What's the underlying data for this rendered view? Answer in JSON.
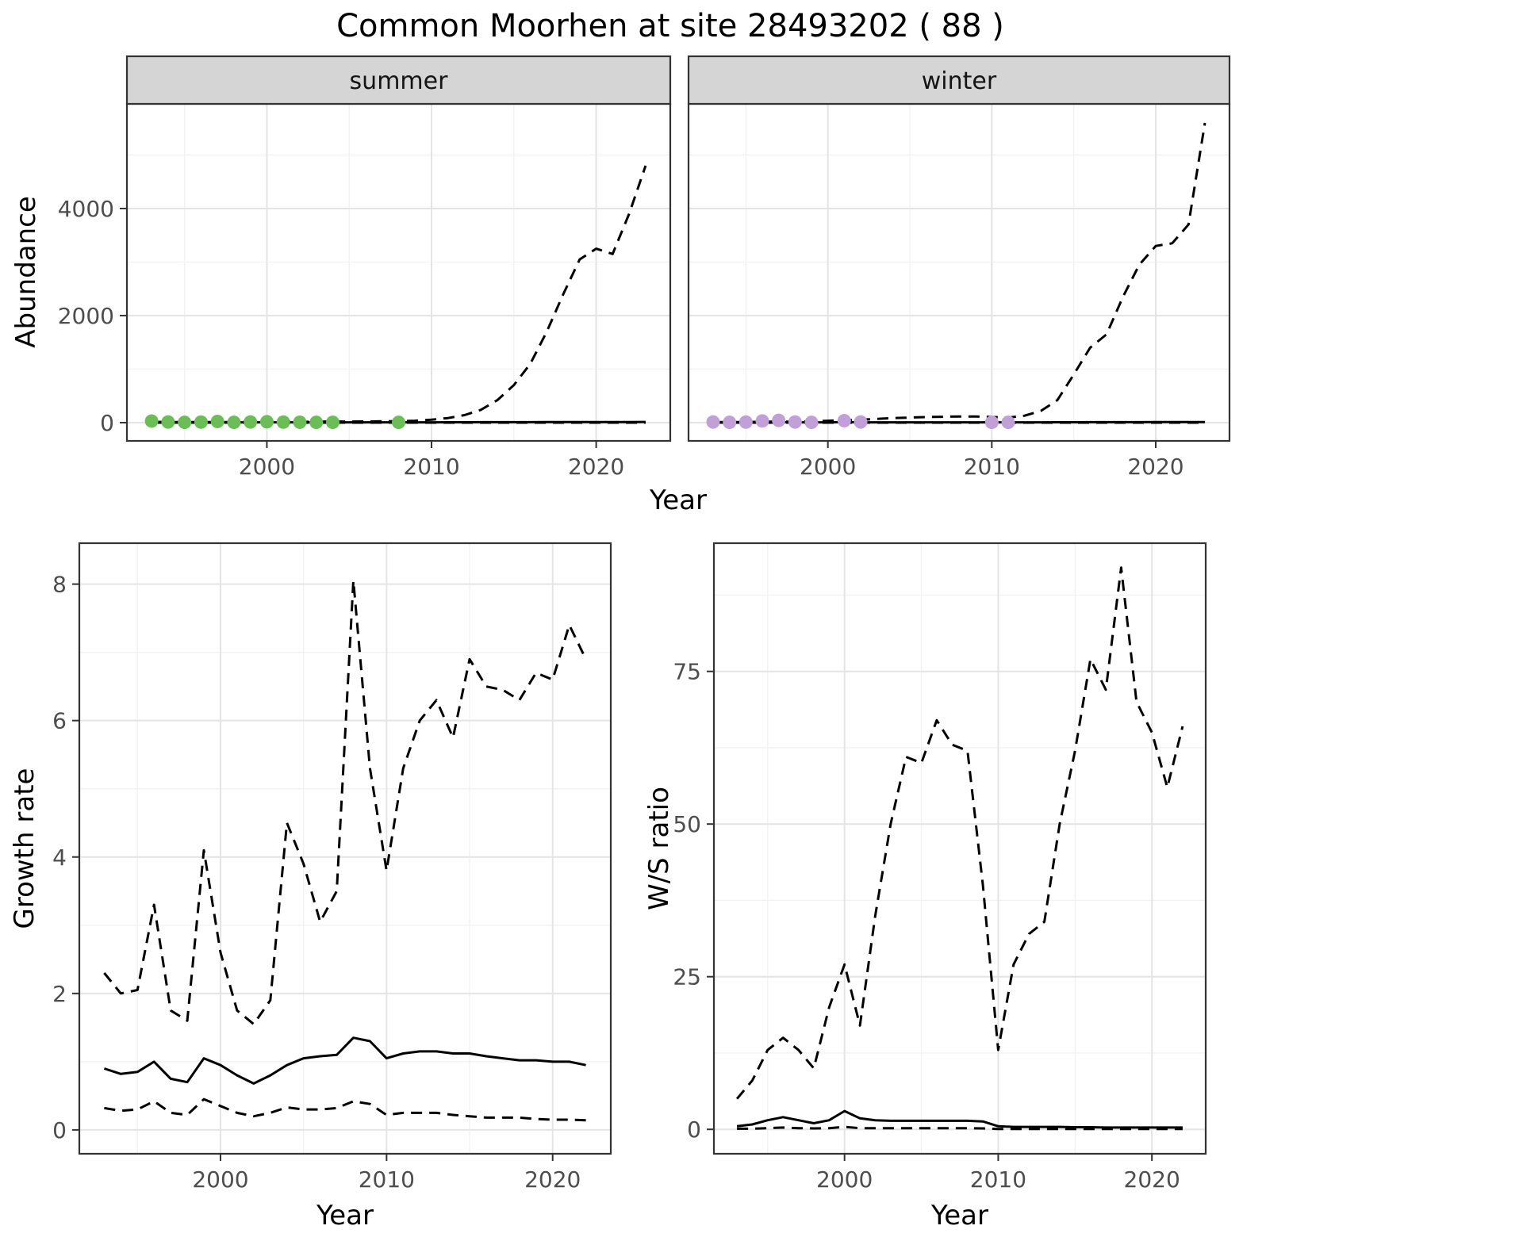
{
  "title": "Common Moorhen at site 28493202 ( 88 )",
  "colors": {
    "line": "#000000",
    "panel_bg": "#ffffff",
    "strip_bg": "#d5d5d5",
    "panel_border": "#333333",
    "grid_major": "#e4e4e4",
    "grid_minor": "#f2f2f2",
    "tick": "#333333",
    "tick_label": "#4d4d4d",
    "summer_points": "#6abf54",
    "winter_points": "#c19fd8"
  },
  "chart_data": [
    {
      "id": "abundance-summer",
      "type": "line",
      "facet_label": "summer",
      "xlabel": "Year",
      "ylabel": "Abundance",
      "xlim": [
        1991.5,
        2024.5
      ],
      "ylim": [
        -341,
        5955
      ],
      "xticks": [
        2000,
        2010,
        2020
      ],
      "yticks": [
        0,
        2000,
        4000
      ],
      "grid": true,
      "series": [
        {
          "name": "upper_ci",
          "style": "dashed",
          "x": [
            1993,
            1994,
            1995,
            1996,
            1997,
            1998,
            1999,
            2000,
            2001,
            2002,
            2003,
            2004,
            2005,
            2006,
            2007,
            2008,
            2009,
            2010,
            2011,
            2012,
            2013,
            2014,
            2015,
            2016,
            2017,
            2018,
            2019,
            2020,
            2021,
            2022,
            2023
          ],
          "y": [
            15,
            12,
            10,
            12,
            10,
            10,
            12,
            15,
            15,
            15,
            18,
            20,
            20,
            22,
            25,
            28,
            35,
            55,
            85,
            140,
            240,
            420,
            700,
            1100,
            1700,
            2400,
            3050,
            3250,
            3150,
            3900,
            4800
          ]
        },
        {
          "name": "lower_ci",
          "style": "dashed",
          "x": [
            1993,
            1994,
            1995,
            1996,
            1997,
            1998,
            1999,
            2000,
            2001,
            2002,
            2003,
            2004,
            2005,
            2006,
            2007,
            2008,
            2009,
            2010,
            2011,
            2012,
            2013,
            2014,
            2015,
            2016,
            2017,
            2018,
            2019,
            2020,
            2021,
            2022,
            2023
          ],
          "y": [
            0,
            0,
            0,
            0,
            0,
            0,
            0,
            0,
            0,
            0,
            0,
            0,
            0,
            0,
            0,
            0,
            0,
            0,
            0,
            0,
            0,
            0,
            0,
            0,
            0,
            0,
            0,
            0,
            0,
            0,
            0
          ]
        },
        {
          "name": "median",
          "style": "solid",
          "x": [
            1993,
            1994,
            1995,
            1996,
            1997,
            1998,
            1999,
            2000,
            2001,
            2002,
            2003,
            2004,
            2005,
            2006,
            2007,
            2008,
            2009,
            2010,
            2011,
            2012,
            2013,
            2014,
            2015,
            2016,
            2017,
            2018,
            2019,
            2020,
            2021,
            2022,
            2023
          ],
          "y": [
            8,
            6,
            5,
            5,
            6,
            5,
            5,
            6,
            5,
            5,
            5,
            5,
            5,
            5,
            5,
            5,
            6,
            6,
            7,
            7,
            8,
            8,
            9,
            9,
            10,
            10,
            11,
            11,
            12,
            12,
            13
          ]
        },
        {
          "name": "observed_counts",
          "style": "points",
          "color": "#6abf54",
          "x": [
            1993,
            1994,
            1995,
            1996,
            1997,
            1998,
            1999,
            2000,
            2001,
            2002,
            2003,
            2004,
            2008
          ],
          "y": [
            30,
            12,
            6,
            10,
            22,
            6,
            12,
            16,
            10,
            8,
            6,
            6,
            6
          ]
        }
      ]
    },
    {
      "id": "abundance-winter",
      "type": "line",
      "facet_label": "winter",
      "xlabel": "Year",
      "ylabel": "Abundance",
      "xlim": [
        1991.5,
        2024.5
      ],
      "ylim": [
        -341,
        5955
      ],
      "xticks": [
        2000,
        2010,
        2020
      ],
      "yticks": [
        0,
        2000,
        4000
      ],
      "grid": true,
      "series": [
        {
          "name": "upper_ci",
          "style": "dashed",
          "x": [
            1993,
            1994,
            1995,
            1996,
            1997,
            1998,
            1999,
            2000,
            2001,
            2002,
            2003,
            2004,
            2005,
            2006,
            2007,
            2008,
            2009,
            2010,
            2011,
            2012,
            2013,
            2014,
            2015,
            2016,
            2017,
            2018,
            2019,
            2020,
            2021,
            2022,
            2023
          ],
          "y": [
            12,
            10,
            12,
            18,
            20,
            18,
            25,
            35,
            45,
            55,
            70,
            85,
            95,
            105,
            110,
            115,
            115,
            105,
            95,
            130,
            220,
            420,
            900,
            1400,
            1650,
            2350,
            2950,
            3300,
            3350,
            3700,
            5600
          ]
        },
        {
          "name": "lower_ci",
          "style": "dashed",
          "x": [
            1993,
            1994,
            1995,
            1996,
            1997,
            1998,
            1999,
            2000,
            2001,
            2002,
            2003,
            2004,
            2005,
            2006,
            2007,
            2008,
            2009,
            2010,
            2011,
            2012,
            2013,
            2014,
            2015,
            2016,
            2017,
            2018,
            2019,
            2020,
            2021,
            2022,
            2023
          ],
          "y": [
            0,
            0,
            0,
            0,
            0,
            0,
            0,
            0,
            0,
            0,
            0,
            0,
            0,
            0,
            0,
            0,
            0,
            0,
            0,
            0,
            0,
            0,
            0,
            0,
            0,
            0,
            0,
            0,
            0,
            0,
            0
          ]
        },
        {
          "name": "median",
          "style": "solid",
          "x": [
            1993,
            1994,
            1995,
            1996,
            1997,
            1998,
            1999,
            2000,
            2001,
            2002,
            2003,
            2004,
            2005,
            2006,
            2007,
            2008,
            2009,
            2010,
            2011,
            2012,
            2013,
            2014,
            2015,
            2016,
            2017,
            2018,
            2019,
            2020,
            2021,
            2022,
            2023
          ],
          "y": [
            6,
            5,
            5,
            8,
            10,
            6,
            5,
            5,
            8,
            5,
            5,
            5,
            5,
            6,
            6,
            6,
            6,
            5,
            5,
            6,
            6,
            7,
            7,
            8,
            8,
            9,
            9,
            10,
            10,
            11,
            12
          ]
        },
        {
          "name": "observed_counts",
          "style": "points",
          "color": "#c19fd8",
          "x": [
            1993,
            1994,
            1995,
            1996,
            1997,
            1998,
            1999,
            2001,
            2002,
            2010,
            2011
          ],
          "y": [
            12,
            6,
            10,
            32,
            42,
            12,
            6,
            36,
            12,
            6,
            6
          ]
        }
      ]
    },
    {
      "id": "growth-rate",
      "type": "line",
      "facet_label": "",
      "xlabel": "Year",
      "ylabel": "Growth rate",
      "xlim": [
        1991.5,
        2023.5
      ],
      "ylim": [
        -0.35,
        8.6
      ],
      "xticks": [
        2000,
        2010,
        2020
      ],
      "yticks": [
        0,
        2,
        4,
        6,
        8
      ],
      "grid": true,
      "series": [
        {
          "name": "upper_ci",
          "style": "dashed",
          "x": [
            1993,
            1994,
            1995,
            1996,
            1997,
            1998,
            1999,
            2000,
            2001,
            2002,
            2003,
            2004,
            2005,
            2006,
            2007,
            2008,
            2009,
            2010,
            2011,
            2012,
            2013,
            2014,
            2015,
            2016,
            2017,
            2018,
            2019,
            2020,
            2021,
            2022
          ],
          "y": [
            2.3,
            2.0,
            2.05,
            3.3,
            1.75,
            1.6,
            4.1,
            2.6,
            1.75,
            1.55,
            1.9,
            4.5,
            3.9,
            3.05,
            3.5,
            8.05,
            5.3,
            3.8,
            5.3,
            6.0,
            6.3,
            5.75,
            6.9,
            6.5,
            6.45,
            6.3,
            6.7,
            6.6,
            7.4,
            6.9
          ]
        },
        {
          "name": "lower_ci",
          "style": "dashed",
          "x": [
            1993,
            1994,
            1995,
            1996,
            1997,
            1998,
            1999,
            2000,
            2001,
            2002,
            2003,
            2004,
            2005,
            2006,
            2007,
            2008,
            2009,
            2010,
            2011,
            2012,
            2013,
            2014,
            2015,
            2016,
            2017,
            2018,
            2019,
            2020,
            2021,
            2022
          ],
          "y": [
            0.32,
            0.28,
            0.3,
            0.42,
            0.25,
            0.22,
            0.45,
            0.35,
            0.25,
            0.2,
            0.25,
            0.33,
            0.3,
            0.3,
            0.32,
            0.42,
            0.38,
            0.22,
            0.25,
            0.25,
            0.25,
            0.22,
            0.2,
            0.18,
            0.18,
            0.18,
            0.16,
            0.15,
            0.15,
            0.14
          ]
        },
        {
          "name": "median",
          "style": "solid",
          "x": [
            1993,
            1994,
            1995,
            1996,
            1997,
            1998,
            1999,
            2000,
            2001,
            2002,
            2003,
            2004,
            2005,
            2006,
            2007,
            2008,
            2009,
            2010,
            2011,
            2012,
            2013,
            2014,
            2015,
            2016,
            2017,
            2018,
            2019,
            2020,
            2021,
            2022
          ],
          "y": [
            0.9,
            0.82,
            0.85,
            1.0,
            0.75,
            0.7,
            1.05,
            0.95,
            0.8,
            0.68,
            0.8,
            0.95,
            1.05,
            1.08,
            1.1,
            1.35,
            1.3,
            1.05,
            1.12,
            1.15,
            1.15,
            1.12,
            1.12,
            1.08,
            1.05,
            1.02,
            1.02,
            1.0,
            1.0,
            0.95
          ]
        }
      ]
    },
    {
      "id": "ws-ratio",
      "type": "line",
      "facet_label": "",
      "xlabel": "Year",
      "ylabel": "W/S ratio",
      "xlim": [
        1991.5,
        2023.5
      ],
      "ylim": [
        -4,
        96
      ],
      "xticks": [
        2000,
        2010,
        2020
      ],
      "yticks": [
        0,
        25,
        50,
        75
      ],
      "grid": true,
      "series": [
        {
          "name": "upper_ci",
          "style": "dashed",
          "x": [
            1993,
            1994,
            1995,
            1996,
            1997,
            1998,
            1999,
            2000,
            2001,
            2002,
            2003,
            2004,
            2005,
            2006,
            2007,
            2008,
            2009,
            2010,
            2011,
            2012,
            2013,
            2014,
            2015,
            2016,
            2017,
            2018,
            2019,
            2020,
            2021,
            2022
          ],
          "y": [
            5,
            8,
            13,
            15,
            13,
            10,
            20,
            27,
            17,
            35,
            50,
            61,
            60,
            67,
            63,
            62,
            40,
            13,
            27,
            32,
            34,
            50,
            62,
            77,
            72,
            92,
            70,
            65,
            56,
            66
          ]
        },
        {
          "name": "lower_ci",
          "style": "dashed",
          "x": [
            1993,
            1994,
            1995,
            1996,
            1997,
            1998,
            1999,
            2000,
            2001,
            2002,
            2003,
            2004,
            2005,
            2006,
            2007,
            2008,
            2009,
            2010,
            2011,
            2012,
            2013,
            2014,
            2015,
            2016,
            2017,
            2018,
            2019,
            2020,
            2021,
            2022
          ],
          "y": [
            0.1,
            0.1,
            0.2,
            0.3,
            0.2,
            0.15,
            0.2,
            0.4,
            0.2,
            0.2,
            0.2,
            0.2,
            0.2,
            0.2,
            0.2,
            0.2,
            0.15,
            0.05,
            0.05,
            0.05,
            0.05,
            0.05,
            0.05,
            0.05,
            0.05,
            0.05,
            0.05,
            0.05,
            0.05,
            0.05
          ]
        },
        {
          "name": "median",
          "style": "solid",
          "x": [
            1993,
            1994,
            1995,
            1996,
            1997,
            1998,
            1999,
            2000,
            2001,
            2002,
            2003,
            2004,
            2005,
            2006,
            2007,
            2008,
            2009,
            2010,
            2011,
            2012,
            2013,
            2014,
            2015,
            2016,
            2017,
            2018,
            2019,
            2020,
            2021,
            2022
          ],
          "y": [
            0.5,
            0.8,
            1.5,
            2.0,
            1.5,
            1.0,
            1.5,
            3.0,
            1.8,
            1.5,
            1.4,
            1.4,
            1.4,
            1.4,
            1.4,
            1.4,
            1.3,
            0.5,
            0.4,
            0.4,
            0.4,
            0.4,
            0.35,
            0.35,
            0.3,
            0.3,
            0.3,
            0.3,
            0.3,
            0.3
          ]
        }
      ]
    }
  ]
}
